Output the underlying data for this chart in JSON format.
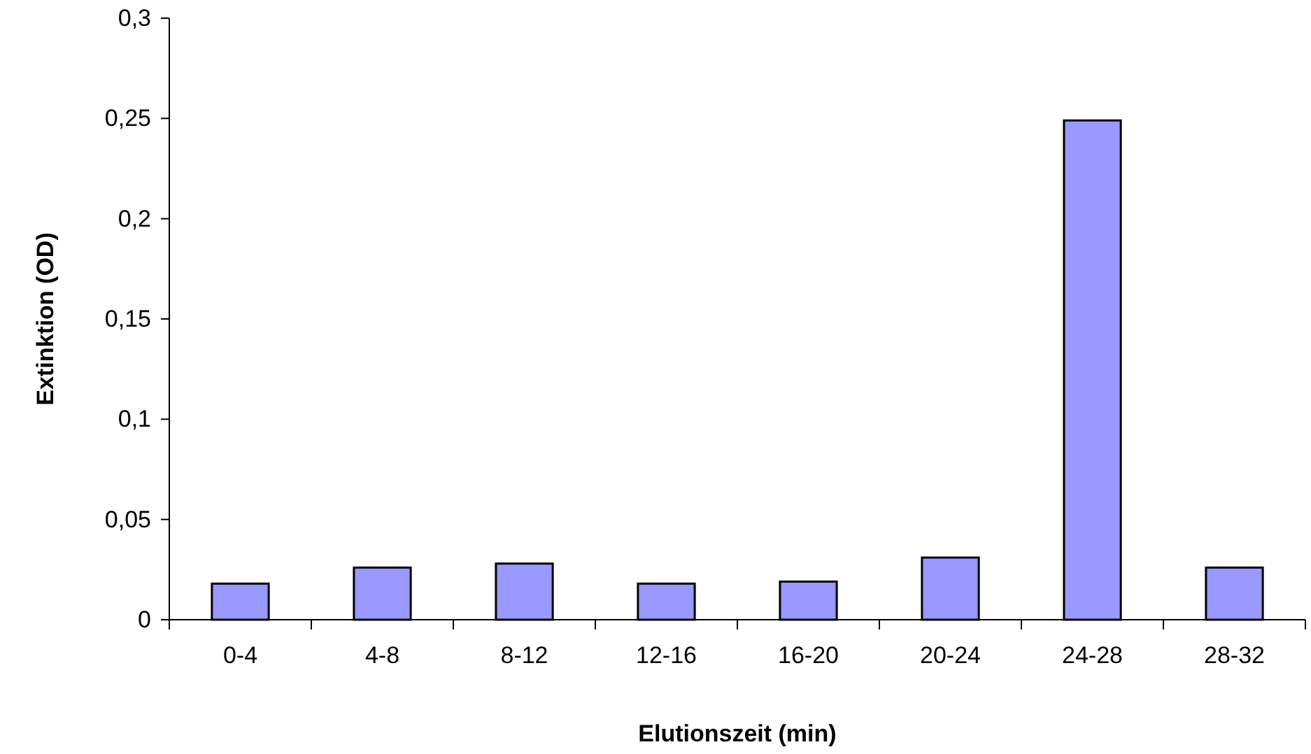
{
  "chart_data": {
    "type": "bar",
    "xlabel": "Elutionszeit (min)",
    "ylabel": "Extinktion (OD)",
    "categories": [
      "0-4",
      "4-8",
      "8-12",
      "12-16",
      "16-20",
      "20-24",
      "24-28",
      "28-32"
    ],
    "values": [
      0.018,
      0.026,
      0.028,
      0.018,
      0.019,
      0.031,
      0.249,
      0.026
    ],
    "color": "#9999ff",
    "ylim": [
      0,
      0.3
    ],
    "yticks": [
      {
        "value": 0,
        "label": "0"
      },
      {
        "value": 0.05,
        "label": "0,05"
      },
      {
        "value": 0.1,
        "label": "0,1"
      },
      {
        "value": 0.15,
        "label": "0,15"
      },
      {
        "value": 0.2,
        "label": "0,2"
      },
      {
        "value": 0.25,
        "label": "0,25"
      },
      {
        "value": 0.3,
        "label": "0,3"
      }
    ],
    "grid": false
  }
}
